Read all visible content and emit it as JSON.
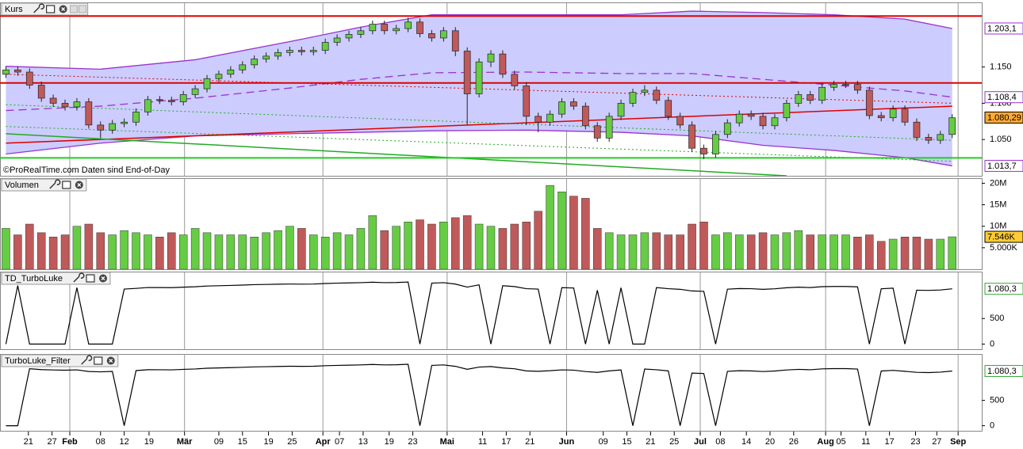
{
  "chart_data": [
    {
      "type": "candlestick",
      "title": "Kurs",
      "note": "©ProRealTime.com Daten sind End-of-Day",
      "up_color": "#66cc44",
      "down_color": "#c05a5a",
      "xlim": [
        -0.5,
        82.5
      ],
      "ylim": [
        1.0,
        1.238
      ],
      "yticks": [
        {
          "value": 1.05,
          "label": "1.050"
        },
        {
          "value": 1.1,
          "label": "1.100"
        },
        {
          "value": 1.15,
          "label": "1.150"
        }
      ],
      "open": [
        1.14,
        1.146,
        1.143,
        1.125,
        1.107,
        1.1,
        1.095,
        1.102,
        1.07,
        1.063,
        1.072,
        1.074,
        1.088,
        1.105,
        1.104,
        1.102,
        1.112,
        1.12,
        1.134,
        1.14,
        1.146,
        1.153,
        1.161,
        1.165,
        1.17,
        1.173,
        1.171,
        1.173,
        1.184,
        1.19,
        1.195,
        1.2,
        1.209,
        1.2,
        1.203,
        1.212,
        1.196,
        1.19,
        1.2,
        1.172,
        1.113,
        1.157,
        1.168,
        1.14,
        1.124,
        1.082,
        1.074,
        1.085,
        1.102,
        1.096,
        1.069,
        1.052,
        1.082,
        1.1,
        1.115,
        1.118,
        1.104,
        1.082,
        1.07,
        1.038,
        1.03,
        1.057,
        1.073,
        1.085,
        1.082,
        1.069,
        1.08,
        1.1,
        1.112,
        1.104,
        1.122,
        1.126,
        1.126,
        1.118,
        1.083,
        1.08,
        1.092,
        1.074,
        1.053,
        1.049,
        1.057
      ],
      "high": [
        1.151,
        1.151,
        1.148,
        1.13,
        1.112,
        1.105,
        1.107,
        1.107,
        1.075,
        1.077,
        1.079,
        1.093,
        1.11,
        1.11,
        1.109,
        1.117,
        1.125,
        1.139,
        1.145,
        1.151,
        1.158,
        1.166,
        1.17,
        1.175,
        1.178,
        1.178,
        1.178,
        1.189,
        1.195,
        1.2,
        1.205,
        1.214,
        1.214,
        1.208,
        1.218,
        1.217,
        1.201,
        1.205,
        1.205,
        1.177,
        1.162,
        1.173,
        1.173,
        1.145,
        1.129,
        1.087,
        1.09,
        1.107,
        1.107,
        1.101,
        1.074,
        1.087,
        1.105,
        1.12,
        1.125,
        1.123,
        1.109,
        1.087,
        1.075,
        1.043,
        1.062,
        1.078,
        1.09,
        1.09,
        1.087,
        1.085,
        1.105,
        1.117,
        1.117,
        1.127,
        1.131,
        1.131,
        1.131,
        1.123,
        1.088,
        1.097,
        1.097,
        1.079,
        1.058,
        1.062,
        1.085
      ],
      "low": [
        1.135,
        1.138,
        1.12,
        1.102,
        1.095,
        1.09,
        1.09,
        1.065,
        1.052,
        1.058,
        1.067,
        1.069,
        1.083,
        1.099,
        1.097,
        1.097,
        1.107,
        1.115,
        1.129,
        1.135,
        1.141,
        1.148,
        1.156,
        1.16,
        1.165,
        1.166,
        1.166,
        1.168,
        1.179,
        1.185,
        1.19,
        1.195,
        1.195,
        1.195,
        1.198,
        1.191,
        1.185,
        1.185,
        1.165,
        1.07,
        1.108,
        1.15,
        1.135,
        1.119,
        1.07,
        1.06,
        1.069,
        1.08,
        1.091,
        1.064,
        1.047,
        1.047,
        1.077,
        1.095,
        1.11,
        1.099,
        1.077,
        1.065,
        1.033,
        1.023,
        1.025,
        1.052,
        1.068,
        1.077,
        1.064,
        1.064,
        1.075,
        1.095,
        1.099,
        1.099,
        1.117,
        1.121,
        1.113,
        1.078,
        1.075,
        1.075,
        1.069,
        1.048,
        1.044,
        1.044,
        1.052
      ],
      "close": [
        1.146,
        1.143,
        1.125,
        1.107,
        1.1,
        1.095,
        1.102,
        1.07,
        1.063,
        1.072,
        1.074,
        1.088,
        1.105,
        1.104,
        1.102,
        1.112,
        1.12,
        1.134,
        1.14,
        1.146,
        1.153,
        1.161,
        1.165,
        1.17,
        1.173,
        1.171,
        1.173,
        1.184,
        1.19,
        1.195,
        1.2,
        1.209,
        1.2,
        1.203,
        1.212,
        1.196,
        1.19,
        1.2,
        1.172,
        1.113,
        1.157,
        1.168,
        1.14,
        1.124,
        1.082,
        1.074,
        1.085,
        1.102,
        1.096,
        1.069,
        1.052,
        1.082,
        1.1,
        1.115,
        1.118,
        1.104,
        1.082,
        1.07,
        1.038,
        1.03,
        1.057,
        1.073,
        1.085,
        1.082,
        1.069,
        1.08,
        1.1,
        1.112,
        1.104,
        1.122,
        1.126,
        1.126,
        1.118,
        1.083,
        1.08,
        1.092,
        1.074,
        1.053,
        1.049,
        1.057,
        1.08
      ],
      "bands": {
        "color": "#9933cc",
        "fill": "#ccccff",
        "x": [
          0,
          8,
          16,
          24,
          30,
          36,
          44,
          52,
          58,
          64,
          70,
          76,
          80
        ],
        "upper": [
          1.151,
          1.147,
          1.16,
          1.185,
          1.205,
          1.222,
          1.222,
          1.222,
          1.227,
          1.225,
          1.222,
          1.216,
          1.2031
        ],
        "middle": [
          1.09,
          1.096,
          1.107,
          1.121,
          1.133,
          1.142,
          1.143,
          1.141,
          1.141,
          1.133,
          1.125,
          1.117,
          1.1084
        ],
        "lower": [
          1.03,
          1.045,
          1.055,
          1.058,
          1.06,
          1.062,
          1.063,
          1.06,
          1.055,
          1.042,
          1.035,
          1.025,
          1.0137
        ]
      },
      "overlays": [
        {
          "color": "#e00000",
          "style": "solid",
          "x": [
            0,
            80
          ],
          "values": [
            1.045,
            1.096
          ]
        },
        {
          "color": "#e00000",
          "style": "dotted",
          "x": [
            0,
            80
          ],
          "values": [
            1.14,
            1.1
          ]
        },
        {
          "color": "#22aa22",
          "style": "dotted",
          "x": [
            0,
            80
          ],
          "values": [
            1.098,
            1.049
          ]
        },
        {
          "color": "#22aa22",
          "style": "dotted",
          "x": [
            0,
            80
          ],
          "values": [
            1.068,
            1.02
          ]
        },
        {
          "color": "#22aa22",
          "style": "solid",
          "x": [
            0,
            66
          ],
          "values": [
            1.058,
            1.0
          ]
        }
      ],
      "hlines": [
        {
          "value": 1.2203,
          "color": "#e00000"
        },
        {
          "value": 1.128,
          "color": "#e00000"
        },
        {
          "value": 1.0247,
          "color": "#22cc22"
        }
      ],
      "markers": [
        {
          "value": 1.2031,
          "label": "1.203,1",
          "color": "#9933cc",
          "fill": "#ffffff"
        },
        {
          "value": 1.1084,
          "label": "1.108,4",
          "color": "#9933cc",
          "fill": "#ffffff"
        },
        {
          "value": 1.08029,
          "label": "1.080,29",
          "color": "#000000",
          "fill": "#ffaa33"
        },
        {
          "value": 1.0137,
          "label": "1.013,7",
          "color": "#9933cc",
          "fill": "#ffffff"
        }
      ]
    },
    {
      "type": "bar",
      "title": "Volumen",
      "up_color": "#66cc44",
      "down_color": "#c05a5a",
      "xlim": [
        -0.5,
        82.5
      ],
      "ylim": [
        0,
        21
      ],
      "yticks": [
        {
          "value": 20,
          "label": "20M"
        },
        {
          "value": 15,
          "label": "15M"
        },
        {
          "value": 10,
          "label": "10M"
        },
        {
          "value": 5,
          "label": "5.000K"
        }
      ],
      "values": [
        9.5,
        8.0,
        10.5,
        8.5,
        7.5,
        8.0,
        10.0,
        10.5,
        8.5,
        8.0,
        9.0,
        8.5,
        8.0,
        7.5,
        8.5,
        8.0,
        9.5,
        8.5,
        8.0,
        8.0,
        8.0,
        7.5,
        8.5,
        9.0,
        10.0,
        9.5,
        8.0,
        7.5,
        8.5,
        8.0,
        9.5,
        12.5,
        9.0,
        10.0,
        11.0,
        11.5,
        10.5,
        11.0,
        12.0,
        12.5,
        10.5,
        10.0,
        9.5,
        10.5,
        11.0,
        13.5,
        19.5,
        18.0,
        17.0,
        16.5,
        9.5,
        8.5,
        8.0,
        8.0,
        8.5,
        8.5,
        8.0,
        8.0,
        10.5,
        11.0,
        8.0,
        8.5,
        8.0,
        8.0,
        8.5,
        8.0,
        8.5,
        9.0,
        8.0,
        8.0,
        8.0,
        8.0,
        7.5,
        8.0,
        6.5,
        7.0,
        7.5,
        7.5,
        7.0,
        7.0,
        7.546
      ],
      "markers": [
        {
          "value": 7.546,
          "label": "7.546K",
          "color": "#000000",
          "fill": "#ffcc33"
        }
      ]
    },
    {
      "type": "line",
      "title": "TD_TurboLuke",
      "color": "#000000",
      "xlim": [
        -0.5,
        82.5
      ],
      "ylim": [
        -100,
        1400
      ],
      "yticks": [
        0,
        500
      ],
      "values": [
        0,
        1143,
        0,
        0,
        0,
        0,
        1102,
        0,
        0,
        0,
        1074,
        1088,
        1105,
        1104,
        1102,
        1112,
        1120,
        1134,
        1140,
        1146,
        1153,
        1161,
        1165,
        1170,
        1173,
        1171,
        1173,
        1184,
        1190,
        1195,
        1200,
        1209,
        1200,
        1203,
        1212,
        0,
        1190,
        1200,
        1172,
        1113,
        1157,
        0,
        1140,
        1124,
        1082,
        1074,
        0,
        1102,
        1096,
        0,
        1052,
        0,
        1100,
        0,
        0,
        1104,
        1082,
        1070,
        1038,
        1030,
        0,
        1073,
        1085,
        1082,
        1069,
        1080,
        1100,
        1112,
        1104,
        1122,
        1126,
        1126,
        1118,
        0,
        1080,
        1092,
        0,
        1053,
        1049,
        1057,
        1080
      ],
      "markers": [
        {
          "value": 1080.3,
          "label": "1.080,3",
          "color": "#33aa33",
          "fill": "#ffffff"
        }
      ]
    },
    {
      "type": "line",
      "title": "TurboLuke_Filter",
      "color": "#000000",
      "xlim": [
        -0.5,
        82.5
      ],
      "ylim": [
        -100,
        1400
      ],
      "yticks": [
        0,
        500
      ],
      "values": [
        0,
        0,
        1125,
        1107,
        1100,
        1095,
        1102,
        1070,
        1063,
        1072,
        0,
        1088,
        1105,
        1104,
        1102,
        1112,
        1120,
        1134,
        1140,
        1146,
        1153,
        1161,
        1165,
        1170,
        1173,
        1171,
        1173,
        1184,
        1190,
        1195,
        1200,
        1209,
        1200,
        1203,
        1212,
        0,
        1190,
        1200,
        1172,
        1113,
        1157,
        1168,
        1140,
        1124,
        1082,
        1074,
        1085,
        1102,
        1096,
        1069,
        1052,
        1082,
        1100,
        0,
        1118,
        1104,
        1082,
        0,
        1038,
        1030,
        0,
        1073,
        1085,
        1082,
        1069,
        1080,
        1100,
        1112,
        1104,
        1122,
        1126,
        1126,
        1118,
        0,
        1080,
        1092,
        1074,
        1053,
        1049,
        1057,
        1080
      ],
      "markers": [
        {
          "value": 1080.3,
          "label": "1.080,3",
          "color": "#33aa33",
          "fill": "#ffffff"
        }
      ],
      "xticks": [
        {
          "value": 1.9,
          "label": "21"
        },
        {
          "value": 3.9,
          "label": "27"
        },
        {
          "value": 5.4,
          "label": "Feb",
          "major": true
        },
        {
          "value": 8.0,
          "label": "08"
        },
        {
          "value": 10.0,
          "label": "12"
        },
        {
          "value": 12.1,
          "label": "19"
        },
        {
          "value": 15.1,
          "label": "Mär",
          "major": true
        },
        {
          "value": 18.0,
          "label": "09"
        },
        {
          "value": 20.0,
          "label": "15"
        },
        {
          "value": 22.2,
          "label": "19"
        },
        {
          "value": 24.2,
          "label": "25"
        },
        {
          "value": 26.8,
          "label": "Apr",
          "major": true
        },
        {
          "value": 28.2,
          "label": "07"
        },
        {
          "value": 30.2,
          "label": "13"
        },
        {
          "value": 32.4,
          "label": "19"
        },
        {
          "value": 34.4,
          "label": "23"
        },
        {
          "value": 37.3,
          "label": "Mai",
          "major": true
        },
        {
          "value": 40.3,
          "label": "11"
        },
        {
          "value": 42.3,
          "label": "17"
        },
        {
          "value": 44.3,
          "label": "21"
        },
        {
          "value": 47.4,
          "label": "Jun",
          "major": true
        },
        {
          "value": 50.5,
          "label": "09"
        },
        {
          "value": 52.5,
          "label": "15"
        },
        {
          "value": 54.5,
          "label": "21"
        },
        {
          "value": 56.5,
          "label": "25"
        },
        {
          "value": 58.7,
          "label": "Jul",
          "major": true
        },
        {
          "value": 60.4,
          "label": "08"
        },
        {
          "value": 62.6,
          "label": "14"
        },
        {
          "value": 64.6,
          "label": "20"
        },
        {
          "value": 66.6,
          "label": "26"
        },
        {
          "value": 69.3,
          "label": "Aug",
          "major": true
        },
        {
          "value": 70.6,
          "label": "05"
        },
        {
          "value": 72.7,
          "label": "11"
        },
        {
          "value": 74.7,
          "label": "17"
        },
        {
          "value": 76.9,
          "label": "23"
        },
        {
          "value": 78.7,
          "label": "27"
        },
        {
          "value": 80.5,
          "label": "Sep",
          "major": true
        }
      ]
    }
  ]
}
